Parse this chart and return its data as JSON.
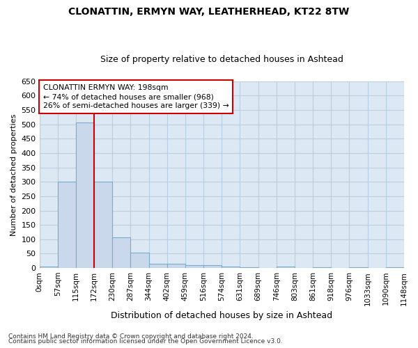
{
  "title1": "CLONATTIN, ERMYN WAY, LEATHERHEAD, KT22 8TW",
  "title2": "Size of property relative to detached houses in Ashtead",
  "xlabel": "Distribution of detached houses by size in Ashtead",
  "ylabel": "Number of detached properties",
  "bin_labels": [
    "0sqm",
    "57sqm",
    "115sqm",
    "172sqm",
    "230sqm",
    "287sqm",
    "344sqm",
    "402sqm",
    "459sqm",
    "516sqm",
    "574sqm",
    "631sqm",
    "689sqm",
    "746sqm",
    "803sqm",
    "861sqm",
    "918sqm",
    "976sqm",
    "1033sqm",
    "1090sqm",
    "1148sqm"
  ],
  "bar_values": [
    5,
    300,
    507,
    300,
    107,
    53,
    14,
    15,
    10,
    9,
    5,
    3,
    0,
    5,
    0,
    3,
    0,
    3,
    0,
    3
  ],
  "bar_color": "#c9d9eb",
  "bar_edge_color": "#7aaac8",
  "vline_color": "#cc0000",
  "vline_pos": 3,
  "annotation_text": "CLONATTIN ERMYN WAY: 198sqm\n← 74% of detached houses are smaller (968)\n26% of semi-detached houses are larger (339) →",
  "annotation_box_facecolor": "white",
  "annotation_box_edgecolor": "#cc0000",
  "ylim": [
    0,
    650
  ],
  "yticks": [
    0,
    50,
    100,
    150,
    200,
    250,
    300,
    350,
    400,
    450,
    500,
    550,
    600,
    650
  ],
  "grid_color": "#b8cfe0",
  "fig_bg_color": "#ffffff",
  "plot_bg_color": "#dce9f5",
  "footer1": "Contains HM Land Registry data © Crown copyright and database right 2024.",
  "footer2": "Contains public sector information licensed under the Open Government Licence v3.0.",
  "title1_fontsize": 10,
  "title2_fontsize": 9,
  "ylabel_fontsize": 8,
  "xlabel_fontsize": 9,
  "tick_fontsize": 8,
  "xtick_fontsize": 7.5,
  "footer_fontsize": 6.5
}
